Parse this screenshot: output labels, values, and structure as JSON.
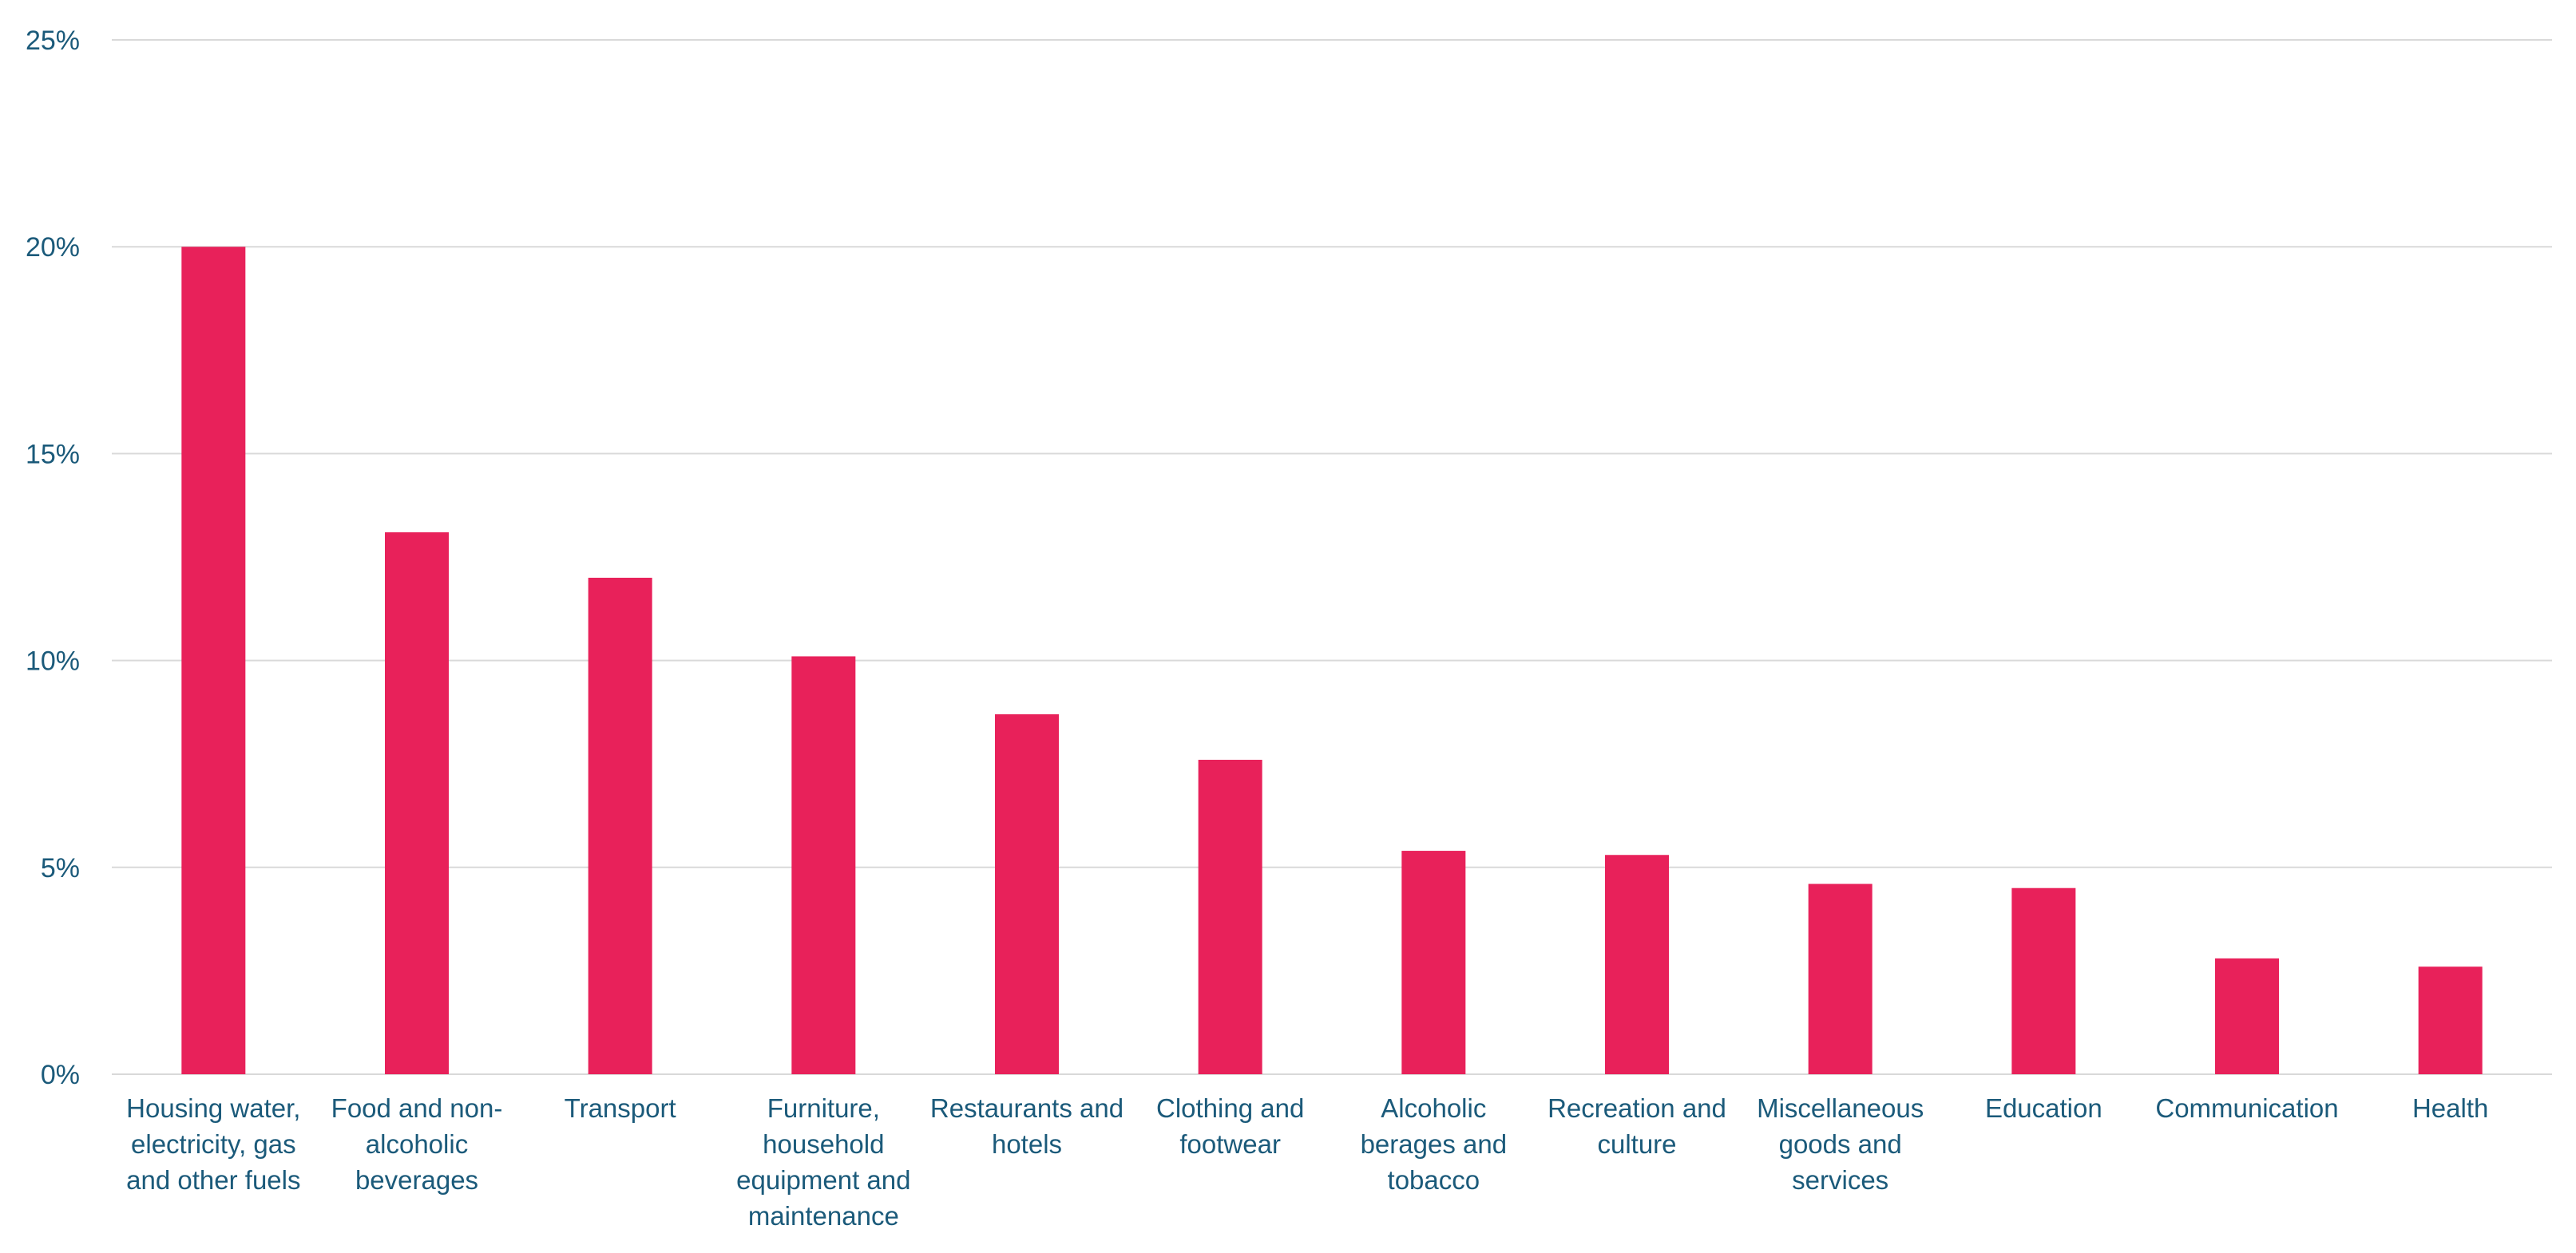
{
  "chart_data": {
    "type": "bar",
    "title": "",
    "xlabel": "",
    "ylabel": "",
    "ylim": [
      0,
      25
    ],
    "y_ticks": [
      {
        "value": 0,
        "label": "0%"
      },
      {
        "value": 5,
        "label": "5%"
      },
      {
        "value": 10,
        "label": "10%"
      },
      {
        "value": 15,
        "label": "15%"
      },
      {
        "value": 20,
        "label": "20%"
      },
      {
        "value": 25,
        "label": "25%"
      }
    ],
    "grid": true,
    "legend": "none",
    "categories": [
      [
        "Housing water,",
        "electricity, gas",
        "and other fuels"
      ],
      [
        "Food and non-",
        "alcoholic",
        "beverages"
      ],
      [
        "Transport"
      ],
      [
        "Furniture,",
        "household",
        "equipment and",
        "maintenance"
      ],
      [
        "Restaurants and",
        "hotels"
      ],
      [
        "Clothing and",
        "footwear"
      ],
      [
        "Alcoholic",
        "berages and",
        "tobacco"
      ],
      [
        "Recreation and",
        "culture"
      ],
      [
        "Miscellaneous",
        "goods and",
        "services"
      ],
      [
        "Education"
      ],
      [
        "Communication"
      ],
      [
        "Health"
      ]
    ],
    "values": [
      20.0,
      13.1,
      12.0,
      10.1,
      8.7,
      7.6,
      5.4,
      5.3,
      4.6,
      4.5,
      2.8,
      2.6
    ],
    "colors": {
      "bar": "#E8215A",
      "grid": "#D9D9D9",
      "text": "#1B5A7A"
    }
  }
}
